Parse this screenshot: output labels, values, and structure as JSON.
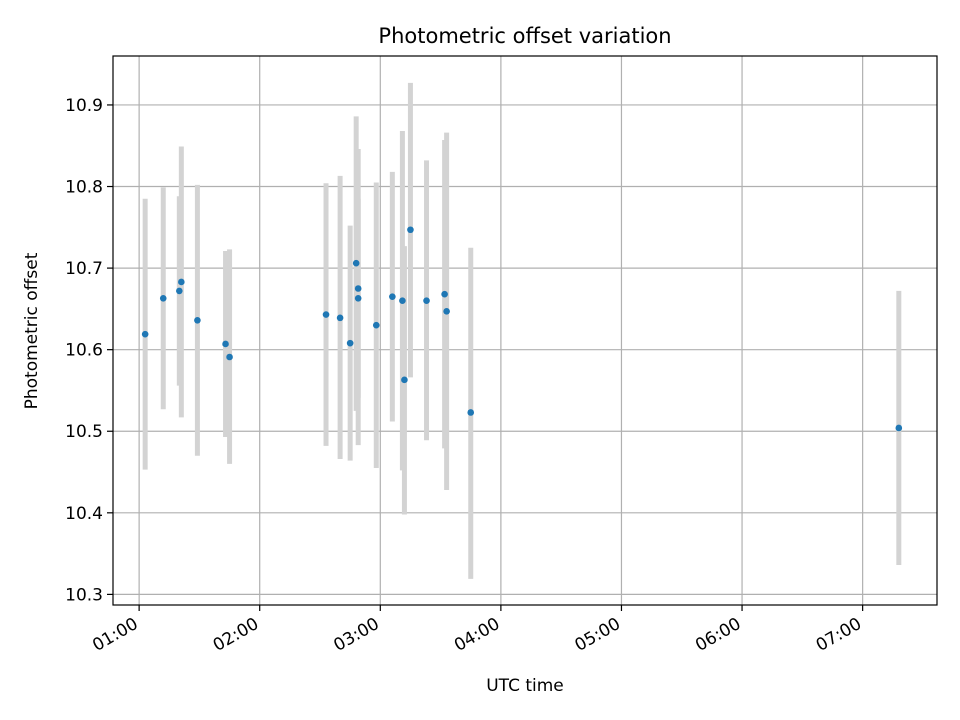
{
  "chart_data": {
    "type": "scatter",
    "title": "Photometric offset variation",
    "xlabel": "UTC time",
    "ylabel": "Photometric offset",
    "xlim": [
      "00:47",
      "07:37"
    ],
    "ylim": [
      10.287,
      10.96
    ],
    "xticks": [
      "01:00",
      "02:00",
      "03:00",
      "04:00",
      "05:00",
      "06:00",
      "07:00"
    ],
    "yticks": [
      10.3,
      10.4,
      10.5,
      10.6,
      10.7,
      10.8,
      10.9
    ],
    "ytick_labels": [
      "10.3",
      "10.4",
      "10.5",
      "10.6",
      "10.7",
      "10.8",
      "10.9"
    ],
    "grid": true,
    "colors": {
      "point": "#1f77b4",
      "errorbar": "#d3d3d3",
      "grid": "#b0b0b0"
    },
    "points": [
      {
        "x": "01:03",
        "y": 10.619,
        "ymin": 10.453,
        "ymax": 10.785
      },
      {
        "x": "01:12",
        "y": 10.663,
        "ymin": 10.527,
        "ymax": 10.799
      },
      {
        "x": "01:20",
        "y": 10.672,
        "ymin": 10.556,
        "ymax": 10.788
      },
      {
        "x": "01:21",
        "y": 10.683,
        "ymin": 10.517,
        "ymax": 10.849
      },
      {
        "x": "01:29",
        "y": 10.636,
        "ymin": 10.47,
        "ymax": 10.802
      },
      {
        "x": "01:43",
        "y": 10.607,
        "ymin": 10.493,
        "ymax": 10.721
      },
      {
        "x": "01:45",
        "y": 10.591,
        "ymin": 10.46,
        "ymax": 10.723
      },
      {
        "x": "02:33",
        "y": 10.643,
        "ymin": 10.482,
        "ymax": 10.804
      },
      {
        "x": "02:40",
        "y": 10.639,
        "ymin": 10.466,
        "ymax": 10.813
      },
      {
        "x": "02:45",
        "y": 10.608,
        "ymin": 10.464,
        "ymax": 10.752
      },
      {
        "x": "02:48",
        "y": 10.706,
        "ymin": 10.525,
        "ymax": 10.886
      },
      {
        "x": "02:49",
        "y": 10.663,
        "ymin": 10.541,
        "ymax": 10.785
      },
      {
        "x": "02:49",
        "y": 10.675,
        "ymin": 10.483,
        "ymax": 10.846
      },
      {
        "x": "02:58",
        "y": 10.63,
        "ymin": 10.455,
        "ymax": 10.805
      },
      {
        "x": "03:06",
        "y": 10.665,
        "ymin": 10.512,
        "ymax": 10.818
      },
      {
        "x": "03:11",
        "y": 10.66,
        "ymin": 10.452,
        "ymax": 10.868
      },
      {
        "x": "03:12",
        "y": 10.563,
        "ymin": 10.398,
        "ymax": 10.727
      },
      {
        "x": "03:15",
        "y": 10.747,
        "ymin": 10.566,
        "ymax": 10.927
      },
      {
        "x": "03:23",
        "y": 10.66,
        "ymin": 10.489,
        "ymax": 10.832
      },
      {
        "x": "03:32",
        "y": 10.668,
        "ymin": 10.479,
        "ymax": 10.857
      },
      {
        "x": "03:33",
        "y": 10.647,
        "ymin": 10.428,
        "ymax": 10.866
      },
      {
        "x": "03:45",
        "y": 10.523,
        "ymin": 10.319,
        "ymax": 10.725
      },
      {
        "x": "07:18",
        "y": 10.504,
        "ymin": 10.336,
        "ymax": 10.672
      }
    ]
  }
}
